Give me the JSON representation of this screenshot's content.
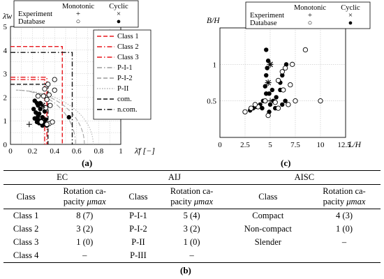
{
  "chart_data": [
    {
      "id": "a",
      "type": "scatter",
      "ylabel": "λ̄w [−]",
      "xlabel": "λ̄f [−]",
      "xlim": [
        0,
        1
      ],
      "ylim": [
        0,
        5
      ],
      "xticks": [
        "0",
        "0.2",
        "0.4",
        "0.6",
        "0.8",
        "1"
      ],
      "yticks": [
        "0",
        "1",
        "2",
        "3",
        "4",
        "5"
      ],
      "grid": true,
      "legend_markers": {
        "col_headers": [
          "Monotonic",
          "Cyclic"
        ],
        "rows": [
          {
            "label": "Experiment",
            "monotonic": "+",
            "cyclic": "×"
          },
          {
            "label": "Database",
            "monotonic": "○",
            "cyclic": "●"
          }
        ]
      },
      "legend_lines": [
        {
          "label": "Class 1",
          "color": "#e8161c",
          "dash": "dashed",
          "x": 0.47,
          "y": 4.15
        },
        {
          "label": "Class 2",
          "color": "#e8161c",
          "dash": "dashdot",
          "x": 0.33,
          "y": 2.85
        },
        {
          "label": "Class 3",
          "color": "#e8161c",
          "dash": "dashdot",
          "x": 0.31,
          "y": 2.75
        },
        {
          "label": "P-I-1",
          "color": "#9a9a9a",
          "dash": "dashdot",
          "curve_r": 0.54
        },
        {
          "label": "P-I-2",
          "color": "#9a9a9a",
          "dash": "dashed",
          "curve_r": 0.62
        },
        {
          "label": "P-II",
          "color": "#b0b0b0",
          "dash": "dotted",
          "curve_r": 0.7
        },
        {
          "label": "com.",
          "color": "#111111",
          "dash": "dashed",
          "x": 0.34,
          "y": 2.55
        },
        {
          "label": "n.com.",
          "color": "#111111",
          "dash": "dashdot",
          "x": 0.56,
          "y": 3.9
        }
      ],
      "series": [
        {
          "name": "Database, cyclic",
          "marker": "filled",
          "points": [
            [
              0.22,
              1.85
            ],
            [
              0.24,
              1.75
            ],
            [
              0.21,
              1.5
            ],
            [
              0.25,
              1.65
            ],
            [
              0.23,
              1.35
            ],
            [
              0.26,
              1.3
            ],
            [
              0.22,
              1.1
            ],
            [
              0.25,
              1.05
            ],
            [
              0.27,
              1.5
            ],
            [
              0.29,
              1.15
            ],
            [
              0.3,
              0.95
            ],
            [
              0.28,
              1.0
            ],
            [
              0.31,
              1.4
            ],
            [
              0.26,
              0.9
            ],
            [
              0.24,
              0.95
            ],
            [
              0.29,
              0.8
            ],
            [
              0.33,
              0.8
            ],
            [
              0.32,
              1.05
            ],
            [
              0.27,
              1.75
            ],
            [
              0.25,
              1.2
            ],
            [
              0.53,
              1.15
            ]
          ]
        },
        {
          "name": "Database, monotonic",
          "marker": "open",
          "points": [
            [
              0.3,
              2.05
            ],
            [
              0.35,
              2.1
            ],
            [
              0.33,
              1.9
            ],
            [
              0.36,
              1.65
            ],
            [
              0.31,
              2.35
            ],
            [
              0.34,
              2.55
            ],
            [
              0.4,
              2.75
            ],
            [
              0.4,
              2.3
            ],
            [
              0.35,
              0.88
            ],
            [
              0.38,
              0.95
            ],
            [
              0.33,
              0.85
            ],
            [
              0.28,
              0.95
            ],
            [
              0.25,
              2.05
            ],
            [
              0.32,
              1.55
            ]
          ]
        },
        {
          "name": "Experiment, monotonic",
          "marker": "plus",
          "points": [
            [
              0.17,
              0.85
            ]
          ]
        },
        {
          "name": "Experiment, cyclic",
          "marker": "cross",
          "points": [
            [
              0.29,
              1.65
            ]
          ]
        }
      ]
    },
    {
      "id": "c",
      "type": "scatter",
      "ylabel": "B/H",
      "xlabel": "L/H",
      "xlim": [
        0,
        12.5
      ],
      "ylim": [
        0,
        1.5
      ],
      "xticks": [
        "0",
        "2.5",
        "5",
        "7.5",
        "10",
        "12.5"
      ],
      "yticks": [
        "0.5",
        "1"
      ],
      "grid": true,
      "legend_markers": {
        "col_headers": [
          "Monotonic",
          "Cyclic"
        ],
        "rows": [
          {
            "label": "Experiment",
            "monotonic": "+",
            "cyclic": "×"
          },
          {
            "label": "Database",
            "monotonic": "○",
            "cyclic": "●"
          }
        ]
      },
      "series": [
        {
          "name": "Database, cyclic",
          "marker": "filled",
          "points": [
            [
              3.0,
              0.37
            ],
            [
              3.3,
              0.4
            ],
            [
              3.6,
              0.42
            ],
            [
              4.0,
              0.45
            ],
            [
              4.2,
              0.4
            ],
            [
              4.3,
              0.5
            ],
            [
              4.6,
              0.6
            ],
            [
              4.5,
              0.7
            ],
            [
              4.6,
              0.85
            ],
            [
              4.7,
              0.95
            ],
            [
              4.6,
              1.2
            ],
            [
              4.8,
              1.05
            ],
            [
              5.0,
              0.45
            ],
            [
              5.3,
              0.5
            ],
            [
              5.6,
              0.55
            ],
            [
              6.0,
              0.65
            ],
            [
              6.0,
              0.75
            ],
            [
              6.2,
              0.45
            ],
            [
              6.5,
              0.5
            ],
            [
              5.2,
              0.65
            ],
            [
              5.5,
              0.4
            ],
            [
              4.9,
              0.35
            ],
            [
              6.6,
              1.0
            ],
            [
              4.9,
              0.6
            ],
            [
              6.2,
              0.85
            ]
          ]
        },
        {
          "name": "Database, monotonic",
          "marker": "open",
          "points": [
            [
              2.5,
              0.35
            ],
            [
              3.1,
              0.4
            ],
            [
              3.8,
              0.42
            ],
            [
              4.5,
              0.5
            ],
            [
              5.5,
              0.48
            ],
            [
              5.8,
              0.78
            ],
            [
              6.2,
              0.9
            ],
            [
              6.5,
              0.95
            ],
            [
              7.2,
              1.0
            ],
            [
              7.5,
              0.5
            ],
            [
              8.5,
              1.2
            ],
            [
              10.0,
              0.5
            ],
            [
              6.3,
              0.65
            ],
            [
              7.0,
              0.72
            ],
            [
              5.8,
              0.4
            ],
            [
              4.8,
              0.3
            ],
            [
              3.5,
              0.45
            ],
            [
              6.8,
              0.45
            ]
          ]
        },
        {
          "name": "Experiment, monotonic",
          "marker": "plus",
          "points": [
            [
              5.0,
              0.5
            ]
          ]
        },
        {
          "name": "Experiment, cyclic",
          "marker": "cross",
          "points": [
            [
              5.0,
              1.0
            ],
            [
              4.8,
              0.75
            ]
          ]
        }
      ]
    }
  ],
  "captions": {
    "a": "(a)",
    "c": "(c)",
    "b": "(b)"
  },
  "table": {
    "groups": [
      "EC",
      "AIJ",
      "AISC"
    ],
    "header_class": "Class",
    "header_rotation": "Rotation ca-",
    "header_rotation_2": "pacity ",
    "header_mu": "μmax",
    "rows": [
      [
        "Class 1",
        "8 (7)",
        "P-I-1",
        "5 (4)",
        "Compact",
        "4 (3)"
      ],
      [
        "Class 2",
        "3 (2)",
        "P-I-2",
        "3 (2)",
        "Non-compact",
        "1 (0)"
      ],
      [
        "Class 3",
        "1 (0)",
        "P-II",
        "1 (0)",
        "Slender",
        "–"
      ],
      [
        "Class 4",
        "–",
        "P-III",
        "–",
        "",
        ""
      ]
    ]
  }
}
